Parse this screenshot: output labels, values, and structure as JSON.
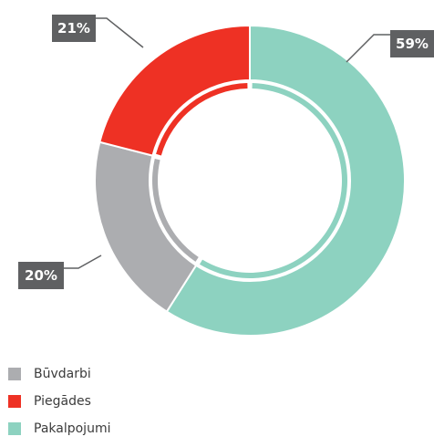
{
  "chart_data": {
    "type": "pie",
    "variant": "donut",
    "categories": [
      "Būvdarbi",
      "Piegādes",
      "Pakalpojumi"
    ],
    "values": [
      20,
      21,
      59
    ],
    "value_labels": [
      "20%",
      "21%",
      "59%"
    ],
    "colors": [
      "#acadb0",
      "#ee3124",
      "#8dd2c0"
    ],
    "callout_color": "#5f6062",
    "legend_position": "bottom-left"
  }
}
